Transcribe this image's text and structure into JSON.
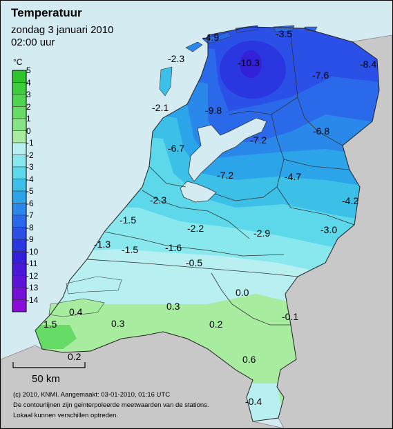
{
  "header": {
    "title": "Temperatuur",
    "date": "zondag 3 januari 2010",
    "time": "02:00 uur"
  },
  "legend": {
    "unit": "°C",
    "items": [
      {
        "label": "5",
        "color": "#2ec42e"
      },
      {
        "label": "4",
        "color": "#3ccc3c"
      },
      {
        "label": "3",
        "color": "#4fd44f"
      },
      {
        "label": "2",
        "color": "#66dc66"
      },
      {
        "label": "1",
        "color": "#86e486"
      },
      {
        "label": "0",
        "color": "#a8eca0"
      },
      {
        "label": "-1",
        "color": "#b8f0f2"
      },
      {
        "label": "-2",
        "color": "#88e8ee"
      },
      {
        "label": "-3",
        "color": "#5cd8ea"
      },
      {
        "label": "-4",
        "color": "#3cc0e8"
      },
      {
        "label": "-5",
        "color": "#2ca4ea"
      },
      {
        "label": "-6",
        "color": "#2a88ea"
      },
      {
        "label": "-7",
        "color": "#2a6aea"
      },
      {
        "label": "-8",
        "color": "#2a50e8"
      },
      {
        "label": "-9",
        "color": "#2a36e0"
      },
      {
        "label": "-10",
        "color": "#3420d8"
      },
      {
        "label": "-11",
        "color": "#4a18d8"
      },
      {
        "label": "-12",
        "color": "#5e14d8"
      },
      {
        "label": "-13",
        "color": "#7410d8"
      },
      {
        "label": "-14",
        "color": "#8a0cd8"
      }
    ]
  },
  "stations": [
    {
      "label": "-4.9"
    },
    {
      "label": "-3.5"
    },
    {
      "label": "-2.3"
    },
    {
      "label": "-10.3"
    },
    {
      "label": "-8.4"
    },
    {
      "label": "-7.6"
    },
    {
      "label": "-2.1"
    },
    {
      "label": "-9.8"
    },
    {
      "label": "-6.8"
    },
    {
      "label": "-6.7"
    },
    {
      "label": "-7.2"
    },
    {
      "label": "-7.2"
    },
    {
      "label": "-4.7"
    },
    {
      "label": "-4.2"
    },
    {
      "label": "-2.3"
    },
    {
      "label": "-1.5"
    },
    {
      "label": "-2.2"
    },
    {
      "label": "-2.9"
    },
    {
      "label": "-3.0"
    },
    {
      "label": "-1.3"
    },
    {
      "label": "-1.5"
    },
    {
      "label": "-1.6"
    },
    {
      "label": "-0.5"
    },
    {
      "label": "0.0"
    },
    {
      "label": "0.3"
    },
    {
      "label": "-0.1"
    },
    {
      "label": "0.4"
    },
    {
      "label": "1.5"
    },
    {
      "label": "0.3"
    },
    {
      "label": "0.2"
    },
    {
      "label": "0.2"
    },
    {
      "label": "0.6"
    },
    {
      "label": "-0.4"
    }
  ],
  "scale_bar": {
    "label": "50 km"
  },
  "footer": {
    "copyright": "(c) 2010, KNMI. Aangemaakt: 03-01-2010, 01:16 UTC",
    "note1": "De contourlijnen zijn geinterpoleerde meetwaarden van de stations.",
    "note2": "Lokaal kunnen verschillen optreden."
  },
  "colors": {
    "sea": "#d4ebf2",
    "land_outside": "#c8c8c8"
  }
}
